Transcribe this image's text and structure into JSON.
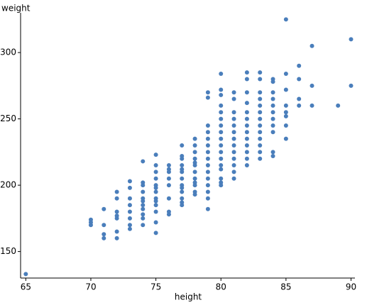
{
  "chart_data": {
    "type": "scatter",
    "x_label": "height",
    "y_label": "weight",
    "color": "#4a7ebb",
    "xlim": [
      64.6,
      90.3
    ],
    "ylim": [
      130,
      330
    ],
    "xticks": [
      65,
      70,
      75,
      80,
      85,
      90
    ],
    "yticks": [
      150,
      200,
      250,
      300
    ],
    "x": [
      65,
      70,
      70,
      70,
      71,
      71,
      71,
      71,
      72,
      72,
      72,
      72,
      72,
      72,
      72,
      73,
      73,
      73,
      73,
      73,
      73,
      73,
      73,
      74,
      74,
      74,
      74,
      74,
      74,
      74,
      74,
      74,
      74,
      74,
      75,
      75,
      75,
      75,
      75,
      75,
      75,
      75,
      75,
      75,
      75,
      75,
      75,
      76,
      76,
      76,
      76,
      76,
      76,
      76,
      76,
      77,
      77,
      77,
      77,
      77,
      77,
      77,
      77,
      77,
      77,
      77,
      77,
      77,
      78,
      78,
      78,
      78,
      78,
      78,
      78,
      78,
      78,
      78,
      78,
      78,
      79,
      79,
      79,
      79,
      79,
      79,
      79,
      79,
      79,
      79,
      79,
      79,
      79,
      79,
      79,
      80,
      80,
      80,
      80,
      80,
      80,
      80,
      80,
      80,
      80,
      80,
      80,
      80,
      80,
      80,
      80,
      80,
      81,
      81,
      81,
      81,
      81,
      81,
      81,
      81,
      81,
      81,
      81,
      81,
      81,
      82,
      82,
      82,
      82,
      82,
      82,
      82,
      82,
      82,
      82,
      82,
      82,
      82,
      83,
      83,
      83,
      83,
      83,
      83,
      83,
      83,
      83,
      83,
      83,
      83,
      83,
      84,
      84,
      84,
      84,
      84,
      84,
      84,
      84,
      84,
      84,
      84,
      85,
      85,
      85,
      85,
      85,
      85,
      85,
      85,
      86,
      86,
      86,
      86,
      87,
      87,
      87,
      89,
      90,
      90
    ],
    "values": [
      133,
      174,
      172,
      170,
      182,
      170,
      163,
      160,
      195,
      190,
      180,
      177,
      175,
      165,
      160,
      203,
      198,
      190,
      185,
      180,
      175,
      170,
      167,
      218,
      202,
      200,
      195,
      190,
      188,
      185,
      182,
      178,
      175,
      170,
      223,
      215,
      210,
      205,
      200,
      198,
      195,
      190,
      188,
      185,
      180,
      172,
      164,
      215,
      212,
      210,
      205,
      200,
      190,
      180,
      178,
      230,
      222,
      220,
      215,
      212,
      210,
      205,
      200,
      198,
      195,
      190,
      187,
      185,
      235,
      230,
      225,
      220,
      217,
      215,
      210,
      205,
      202,
      200,
      195,
      193,
      270,
      266,
      245,
      240,
      235,
      230,
      225,
      220,
      215,
      210,
      205,
      200,
      195,
      190,
      182,
      284,
      272,
      268,
      260,
      255,
      250,
      245,
      240,
      235,
      230,
      225,
      220,
      215,
      212,
      205,
      202,
      200,
      270,
      265,
      255,
      250,
      245,
      240,
      235,
      230,
      225,
      220,
      215,
      210,
      205,
      285,
      280,
      270,
      262,
      255,
      250,
      245,
      240,
      235,
      230,
      225,
      220,
      215,
      285,
      280,
      270,
      265,
      260,
      255,
      250,
      245,
      240,
      235,
      230,
      225,
      220,
      280,
      278,
      270,
      265,
      260,
      255,
      250,
      245,
      240,
      225,
      222,
      325,
      284,
      272,
      260,
      255,
      252,
      245,
      235,
      290,
      280,
      265,
      260,
      305,
      275,
      260,
      260,
      310,
      275
    ]
  }
}
